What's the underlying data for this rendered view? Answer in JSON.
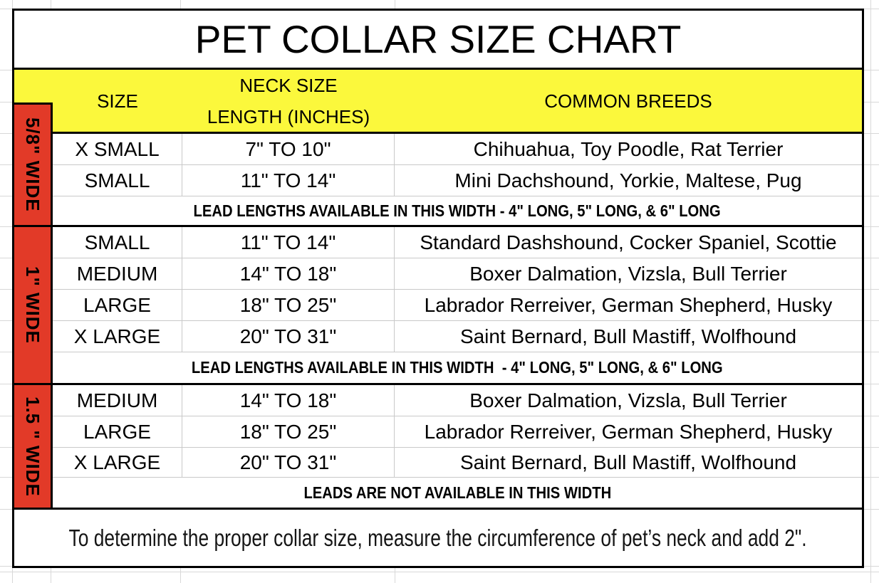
{
  "title": "PET COLLAR SIZE CHART",
  "header": {
    "size": "SIZE",
    "neck_size_line1": "NECK SIZE",
    "neck_size_line2": "LENGTH (INCHES)",
    "breeds": "COMMON BREEDS"
  },
  "sections": [
    {
      "width_label": "5/8\" WIDE",
      "rows": [
        {
          "size": "X SMALL",
          "neck": "7\" TO 10\"",
          "breeds": "Chihuahua, Toy Poodle, Rat Terrier"
        },
        {
          "size": "SMALL",
          "neck": "11\" TO 14\"",
          "breeds": "Mini Dachshound, Yorkie, Maltese, Pug"
        }
      ],
      "note": "LEAD LENGTHS AVAILABLE IN THIS WIDTH - 4\" LONG, 5\" LONG, & 6\" LONG"
    },
    {
      "width_label": "1\" WIDE",
      "rows": [
        {
          "size": "SMALL",
          "neck": "11\" TO 14\"",
          "breeds": "Standard Dashshound, Cocker Spaniel, Scottie"
        },
        {
          "size": "MEDIUM",
          "neck": "14\" TO 18\"",
          "breeds": "Boxer Dalmation, Vizsla, Bull Terrier"
        },
        {
          "size": "LARGE",
          "neck": "18\" TO 25\"",
          "breeds": "Labrador Rerreiver, German Shepherd, Husky"
        },
        {
          "size": "X LARGE",
          "neck": "20\" TO 31\"",
          "breeds": "Saint Bernard, Bull Mastiff, Wolfhound"
        }
      ],
      "note": "LEAD LENGTHS AVAILABLE IN THIS WIDTH  - 4\" LONG, 5\" LONG, & 6\" LONG"
    },
    {
      "width_label": "1.5 \" WIDE",
      "rows": [
        {
          "size": "MEDIUM",
          "neck": "14\" TO 18\"",
          "breeds": "Boxer Dalmation, Vizsla, Bull Terrier"
        },
        {
          "size": "LARGE",
          "neck": "18\" TO 25\"",
          "breeds": "Labrador Rerreiver, German Shepherd, Husky"
        },
        {
          "size": "X LARGE",
          "neck": "20\" TO 31\"",
          "breeds": "Saint Bernard, Bull Mastiff, Wolfhound"
        }
      ],
      "note": "LEADS ARE NOT AVAILABLE IN THIS WIDTH"
    }
  ],
  "footer": "To determine the proper collar size, measure the circumference of pet’s neck and add 2\".",
  "colors": {
    "header_yellow": "#FBF83C",
    "width_red": "#E23A28",
    "border_black": "#000000",
    "gridline_gray": "#D8D8D8",
    "cell_line_gray": "#C9C9C9"
  }
}
